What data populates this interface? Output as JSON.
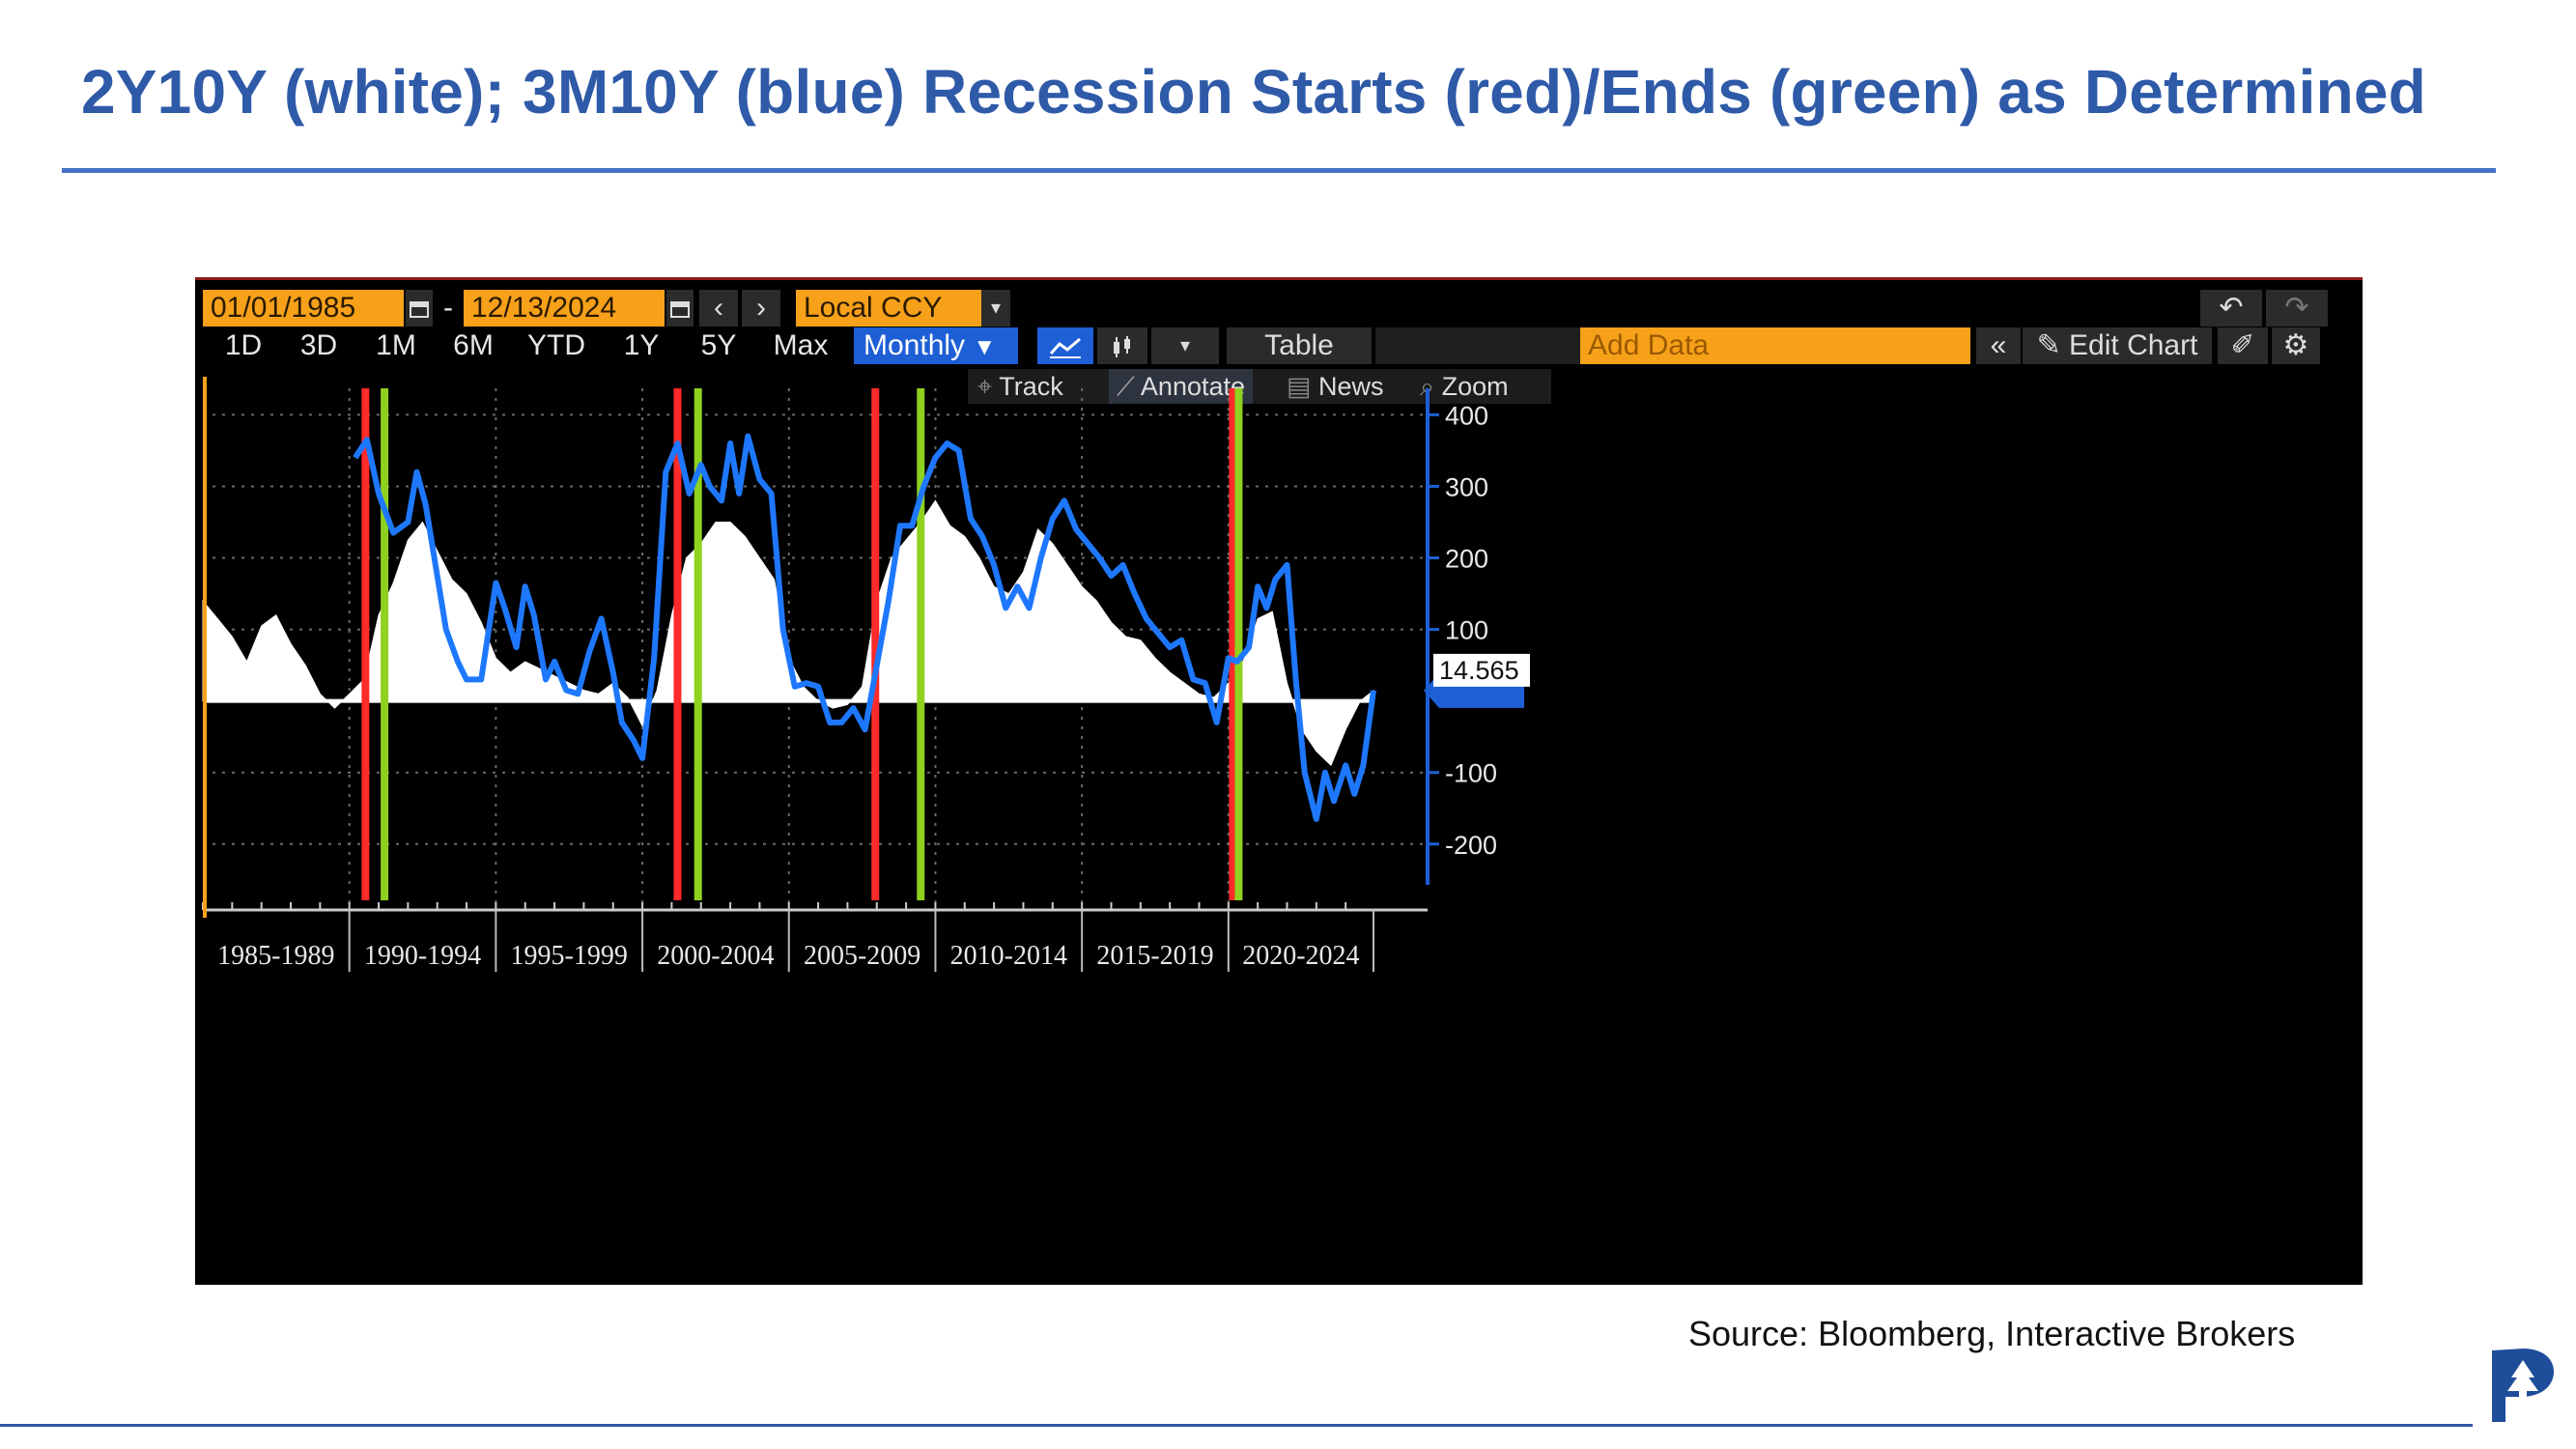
{
  "slide": {
    "title": "2Y10Y (white); 3M10Y (blue) Recession Starts (red)/Ends (green) as Determined",
    "source": "Source: Bloomberg, Interactive Brokers"
  },
  "toolbar": {
    "start_date": "01/01/1985",
    "date_separator": "-",
    "end_date": "12/13/2024",
    "currency": "Local CCY",
    "undo_icon": "undo-icon",
    "redo_icon": "redo-icon",
    "ranges": [
      "1D",
      "3D",
      "1M",
      "6M",
      "YTD",
      "1Y",
      "5Y",
      "Max"
    ],
    "frequency": "Monthly",
    "table_label": "Table",
    "add_data_placeholder": "Add Data",
    "edit_chart_label": "Edit Chart",
    "track_label": "Track",
    "annotate_label": "Annotate",
    "news_label": "News",
    "zoom_label": "Zoom"
  },
  "colors": {
    "spread_2y10y": "#ffffff",
    "spread_3m10y": "#1e78ff",
    "recession_start": "#ff2a2a",
    "recession_end": "#8fd11f",
    "date_field": "#f7a11a",
    "selected": "#1e5fd6",
    "title": "#2e5aa8"
  },
  "chart_data": {
    "type": "line",
    "x_unit": "year",
    "xlim": [
      1985.0,
      2024.95
    ],
    "ylim": [
      -230,
      410
    ],
    "yticks": [
      400,
      300,
      200,
      100,
      -100,
      -200
    ],
    "ytick_labels": [
      "400",
      "300",
      "200",
      "100",
      "-100",
      "-200"
    ],
    "x_period_labels": [
      "1985-1989",
      "1990-1994",
      "1995-1999",
      "2000-2004",
      "2005-2009",
      "2010-2014",
      "2015-2019",
      "2020-2024"
    ],
    "x_period_boundaries": [
      1985,
      1990,
      1995,
      2000,
      2005,
      2010,
      2015,
      2020,
      2025
    ],
    "last_value_label": "14.565",
    "recession_starts": [
      1990.55,
      2001.2,
      2007.95,
      2020.15
    ],
    "recession_ends": [
      1991.2,
      2001.9,
      2009.5,
      2020.35
    ],
    "series": [
      {
        "name": "2Y10Y",
        "style": "area",
        "x": [
          1985.0,
          1985.5,
          1986.0,
          1986.5,
          1987.0,
          1987.5,
          1988.0,
          1988.5,
          1989.0,
          1989.5,
          1990.0,
          1990.5,
          1991.0,
          1991.5,
          1992.0,
          1992.5,
          1993.0,
          1993.5,
          1994.0,
          1994.5,
          1995.0,
          1995.5,
          1996.0,
          1996.5,
          1997.0,
          1997.5,
          1998.0,
          1998.5,
          1999.0,
          1999.5,
          2000.0,
          2000.5,
          2001.0,
          2001.5,
          2002.0,
          2002.5,
          2003.0,
          2003.5,
          2004.0,
          2004.5,
          2005.0,
          2005.5,
          2006.0,
          2006.5,
          2007.0,
          2007.5,
          2008.0,
          2008.5,
          2009.0,
          2009.5,
          2010.0,
          2010.5,
          2011.0,
          2011.5,
          2012.0,
          2012.5,
          2013.0,
          2013.5,
          2014.0,
          2014.5,
          2015.0,
          2015.5,
          2016.0,
          2016.5,
          2017.0,
          2017.5,
          2018.0,
          2018.5,
          2019.0,
          2019.5,
          2020.0,
          2020.5,
          2021.0,
          2021.5,
          2022.0,
          2022.5,
          2023.0,
          2023.5,
          2024.0,
          2024.5,
          2024.95
        ],
        "values": [
          140,
          115,
          90,
          55,
          105,
          120,
          80,
          50,
          10,
          -10,
          10,
          30,
          120,
          165,
          225,
          250,
          210,
          170,
          150,
          110,
          60,
          40,
          55,
          45,
          35,
          25,
          15,
          10,
          25,
          5,
          -35,
          15,
          120,
          200,
          220,
          250,
          250,
          230,
          200,
          170,
          60,
          20,
          0,
          -10,
          -5,
          20,
          140,
          200,
          225,
          250,
          280,
          245,
          230,
          200,
          160,
          150,
          180,
          240,
          220,
          190,
          160,
          140,
          110,
          90,
          85,
          60,
          40,
          25,
          10,
          5,
          25,
          55,
          115,
          125,
          25,
          -40,
          -70,
          -90,
          -40,
          0,
          14.565
        ]
      },
      {
        "name": "3M10Y",
        "style": "line",
        "x": [
          1990.2,
          1990.6,
          1991.0,
          1991.5,
          1992.0,
          1992.3,
          1992.6,
          1993.0,
          1993.3,
          1993.7,
          1994.0,
          1994.5,
          1995.0,
          1995.3,
          1995.7,
          1996.0,
          1996.3,
          1996.7,
          1997.0,
          1997.4,
          1997.8,
          1998.2,
          1998.6,
          1999.0,
          1999.3,
          1999.7,
          2000.0,
          2000.4,
          2000.8,
          2001.2,
          2001.6,
          2002.0,
          2002.3,
          2002.7,
          2003.0,
          2003.3,
          2003.6,
          2004.0,
          2004.4,
          2004.8,
          2005.2,
          2005.6,
          2006.0,
          2006.4,
          2006.8,
          2007.2,
          2007.6,
          2008.0,
          2008.4,
          2008.8,
          2009.2,
          2009.6,
          2010.0,
          2010.4,
          2010.8,
          2011.2,
          2011.6,
          2012.0,
          2012.4,
          2012.8,
          2013.2,
          2013.6,
          2014.0,
          2014.4,
          2014.8,
          2015.2,
          2015.6,
          2016.0,
          2016.4,
          2016.8,
          2017.2,
          2017.6,
          2018.0,
          2018.4,
          2018.8,
          2019.2,
          2019.6,
          2020.0,
          2020.3,
          2020.7,
          2021.0,
          2021.3,
          2021.6,
          2022.0,
          2022.3,
          2022.6,
          2023.0,
          2023.3,
          2023.6,
          2024.0,
          2024.3,
          2024.6,
          2024.95
        ],
        "values": [
          340,
          365,
          290,
          235,
          250,
          320,
          275,
          175,
          100,
          55,
          30,
          30,
          165,
          130,
          75,
          160,
          120,
          30,
          55,
          15,
          10,
          70,
          115,
          40,
          -30,
          -55,
          -80,
          60,
          320,
          360,
          290,
          330,
          300,
          280,
          360,
          290,
          370,
          310,
          290,
          100,
          20,
          25,
          20,
          -30,
          -30,
          -10,
          -40,
          50,
          140,
          245,
          245,
          300,
          340,
          360,
          350,
          255,
          230,
          190,
          130,
          160,
          130,
          200,
          255,
          280,
          240,
          220,
          200,
          175,
          190,
          150,
          115,
          95,
          75,
          85,
          30,
          25,
          -30,
          60,
          55,
          75,
          160,
          130,
          170,
          190,
          30,
          -100,
          -165,
          -100,
          -140,
          -90,
          -130,
          -90,
          14.565
        ]
      }
    ]
  }
}
